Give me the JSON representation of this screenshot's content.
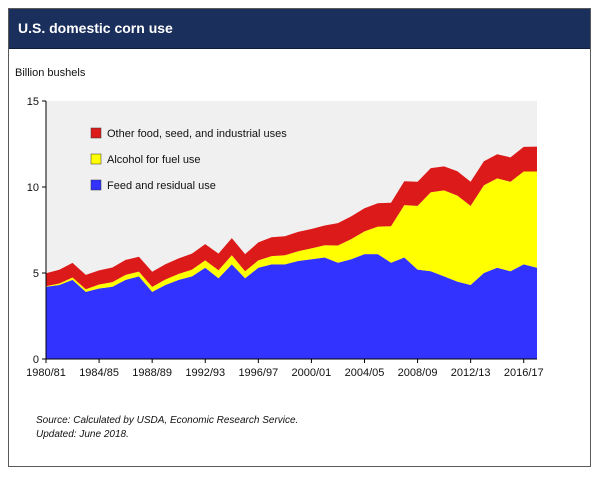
{
  "header": {
    "title": "U.S. domestic corn use"
  },
  "footer": {
    "source": "Source: Calculated by USDA, Economic Research Service.",
    "updated": "Updated: June 2018."
  },
  "chart_data": {
    "type": "area",
    "stacked": true,
    "ylabel": "Billion bushels",
    "ylim": [
      0,
      15
    ],
    "yticks": [
      0,
      5,
      10,
      15
    ],
    "xlim": [
      1980,
      2017
    ],
    "x_tick_labels": [
      "1980/81",
      "1984/85",
      "1988/89",
      "1992/93",
      "1996/97",
      "2000/01",
      "2004/05",
      "2008/09",
      "2012/13",
      "2016/17"
    ],
    "x": [
      1980,
      1981,
      1982,
      1983,
      1984,
      1985,
      1986,
      1987,
      1988,
      1989,
      1990,
      1991,
      1992,
      1993,
      1994,
      1995,
      1996,
      1997,
      1998,
      1999,
      2000,
      2001,
      2002,
      2003,
      2004,
      2005,
      2006,
      2007,
      2008,
      2009,
      2010,
      2011,
      2012,
      2013,
      2014,
      2015,
      2016,
      2017
    ],
    "grid": false,
    "legend_position": "top-left",
    "series": [
      {
        "name": "Feed and residual use",
        "color": "#3333ff",
        "values": [
          4.2,
          4.3,
          4.6,
          3.9,
          4.1,
          4.2,
          4.6,
          4.8,
          3.9,
          4.3,
          4.6,
          4.8,
          5.3,
          4.7,
          5.5,
          4.7,
          5.3,
          5.5,
          5.5,
          5.7,
          5.8,
          5.9,
          5.6,
          5.8,
          6.1,
          6.1,
          5.6,
          5.9,
          5.2,
          5.1,
          4.8,
          4.5,
          4.3,
          5.0,
          5.3,
          5.1,
          5.5,
          5.3
        ]
      },
      {
        "name": "Alcohol for fuel use",
        "color": "#ffff00",
        "values": [
          0.04,
          0.09,
          0.14,
          0.16,
          0.23,
          0.27,
          0.29,
          0.28,
          0.29,
          0.32,
          0.35,
          0.4,
          0.43,
          0.46,
          0.53,
          0.4,
          0.43,
          0.48,
          0.53,
          0.57,
          0.63,
          0.71,
          1.0,
          1.17,
          1.32,
          1.6,
          2.12,
          3.05,
          3.7,
          4.6,
          5.0,
          5.0,
          4.6,
          5.1,
          5.2,
          5.2,
          5.4,
          5.6
        ]
      },
      {
        "name": "Other food, seed, and industrial uses",
        "color": "#dd1a1a",
        "values": [
          0.75,
          0.8,
          0.85,
          0.83,
          0.82,
          0.85,
          0.87,
          0.87,
          0.88,
          0.89,
          0.9,
          0.93,
          0.95,
          0.97,
          1.0,
          1.0,
          1.05,
          1.1,
          1.11,
          1.12,
          1.13,
          1.15,
          1.3,
          1.32,
          1.35,
          1.36,
          1.37,
          1.38,
          1.4,
          1.4,
          1.4,
          1.41,
          1.4,
          1.4,
          1.4,
          1.42,
          1.43,
          1.45
        ]
      }
    ]
  }
}
